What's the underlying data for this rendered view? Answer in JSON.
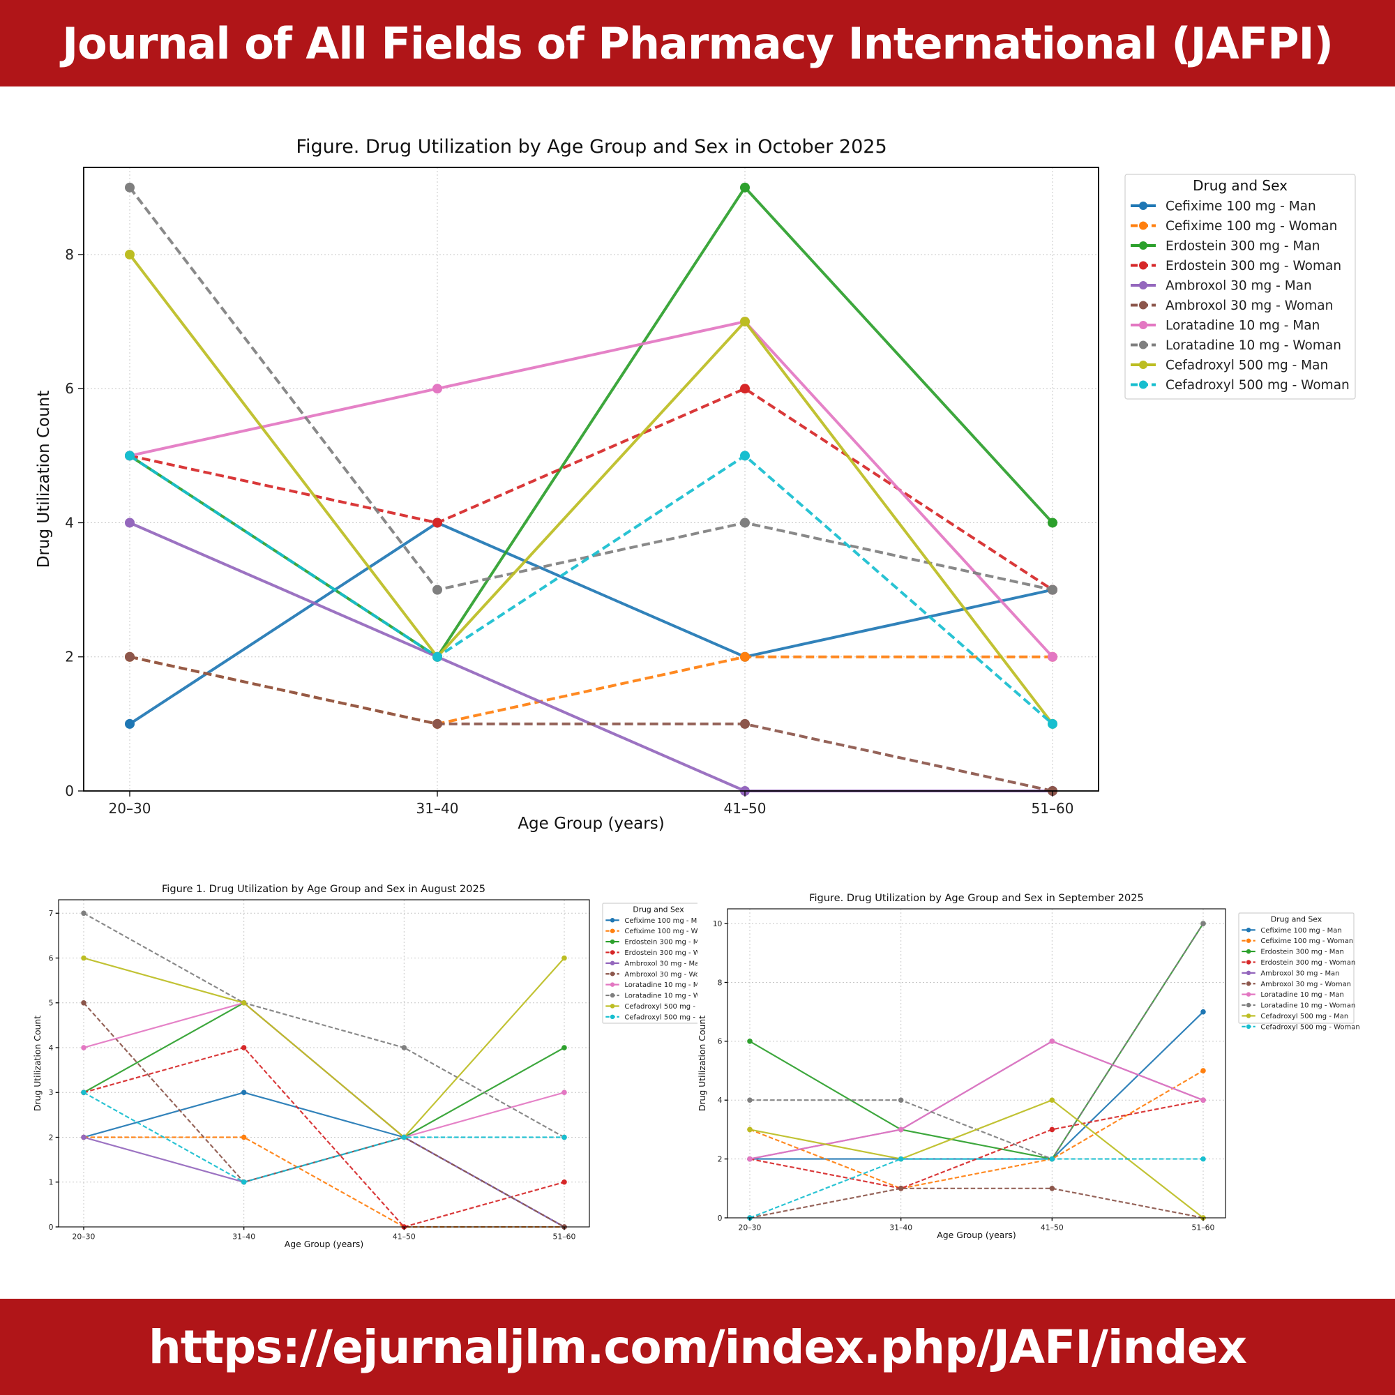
{
  "header": {
    "title": "Journal of All Fields of Pharmacy International (JAFPI)"
  },
  "footer": {
    "url": "https://ejurnaljlm.com/index.php/JAFI/index"
  },
  "colors": {
    "banner": "#b01518",
    "banner_text": "#ffffff"
  },
  "series_styles": [
    {
      "name": "Cefixime 100 mg - Man",
      "color": "#1f77b4",
      "dashed": false
    },
    {
      "name": "Cefixime 100 mg - Woman",
      "color": "#ff7f0e",
      "dashed": true
    },
    {
      "name": "Erdostein 300 mg - Man",
      "color": "#2ca02c",
      "dashed": false
    },
    {
      "name": "Erdostein 300 mg - Woman",
      "color": "#d62728",
      "dashed": true
    },
    {
      "name": "Ambroxol 30 mg - Man",
      "color": "#9467bd",
      "dashed": false
    },
    {
      "name": "Ambroxol 30 mg - Woman",
      "color": "#8c564b",
      "dashed": true
    },
    {
      "name": "Loratadine 10 mg - Man",
      "color": "#e377c2",
      "dashed": false
    },
    {
      "name": "Loratadine 10 mg - Woman",
      "color": "#7f7f7f",
      "dashed": true
    },
    {
      "name": "Cefadroxyl 500 mg - Man",
      "color": "#bcbd22",
      "dashed": false
    },
    {
      "name": "Cefadroxyl 500 mg - Woman",
      "color": "#17becf",
      "dashed": true
    }
  ],
  "chart_data": [
    {
      "id": "october",
      "type": "line",
      "title": "Figure. Drug Utilization by Age Group and Sex in October 2025",
      "xlabel": "Age Group (years)",
      "ylabel": "Drug Utilization Count",
      "categories": [
        "20–30",
        "31–40",
        "41–50",
        "51–60"
      ],
      "ylim": [
        0,
        9.3
      ],
      "yticks": [
        0,
        2,
        4,
        6,
        8
      ],
      "grid": true,
      "legend_title": "Drug and Sex",
      "legend_placement": "outside-right",
      "series": [
        {
          "name": "Cefixime 100 mg - Man",
          "values": [
            1,
            4,
            2,
            3
          ]
        },
        {
          "name": "Cefixime 100 mg - Woman",
          "values": [
            2,
            1,
            2,
            2
          ]
        },
        {
          "name": "Erdostein 300 mg - Man",
          "values": [
            5,
            2,
            9,
            4
          ]
        },
        {
          "name": "Erdostein 300 mg - Woman",
          "values": [
            5,
            4,
            6,
            3
          ]
        },
        {
          "name": "Ambroxol 30 mg - Man",
          "values": [
            4,
            2,
            0,
            0
          ]
        },
        {
          "name": "Ambroxol 30 mg - Woman",
          "values": [
            2,
            1,
            1,
            0
          ]
        },
        {
          "name": "Loratadine 10 mg - Man",
          "values": [
            5,
            6,
            7,
            2
          ]
        },
        {
          "name": "Loratadine 10 mg - Woman",
          "values": [
            9,
            3,
            4,
            3
          ]
        },
        {
          "name": "Cefadroxyl 500 mg - Man",
          "values": [
            8,
            2,
            7,
            1
          ]
        },
        {
          "name": "Cefadroxyl 500 mg - Woman",
          "values": [
            5,
            2,
            5,
            1
          ]
        }
      ]
    },
    {
      "id": "august",
      "type": "line",
      "title": "Figure 1. Drug Utilization by Age Group and Sex in August 2025",
      "xlabel": "Age Group (years)",
      "ylabel": "Drug Utilization Count",
      "categories": [
        "20–30",
        "31–40",
        "41–50",
        "51–60"
      ],
      "ylim": [
        0,
        7.3
      ],
      "yticks": [
        0,
        1,
        2,
        3,
        4,
        5,
        6,
        7
      ],
      "grid": true,
      "legend_title": "Drug and Sex",
      "legend_placement": "outside-right (cropped)",
      "legend_labels": [
        "Cefixime 100 mg - Ma",
        "Cefixime 100 mg - Wo",
        "Erdostein 300 mg - M",
        "Erdostein 300 mg - W",
        "Ambroxol 30 mg - Ma",
        "Ambroxol 30 mg - Wo",
        "Loratadine 10 mg - M",
        "Loratadine 10 mg - W",
        "Cefadroxyl 500 mg - I",
        "Cefadroxyl 500 mg - \\"
      ],
      "series": [
        {
          "name": "Cefixime 100 mg - Man",
          "values": [
            2,
            3,
            2,
            0
          ]
        },
        {
          "name": "Cefixime 100 mg - Woman",
          "values": [
            2,
            2,
            0,
            0
          ]
        },
        {
          "name": "Erdostein 300 mg - Man",
          "values": [
            3,
            5,
            2,
            4
          ]
        },
        {
          "name": "Erdostein 300 mg - Woman",
          "values": [
            3,
            4,
            0,
            1
          ]
        },
        {
          "name": "Ambroxol 30 mg - Man",
          "values": [
            2,
            1,
            2,
            0
          ]
        },
        {
          "name": "Ambroxol 30 mg - Woman",
          "values": [
            5,
            1,
            2,
            0
          ]
        },
        {
          "name": "Loratadine 10 mg - Man",
          "values": [
            4,
            5,
            2,
            3
          ]
        },
        {
          "name": "Loratadine 10 mg - Woman",
          "values": [
            7,
            5,
            4,
            2
          ]
        },
        {
          "name": "Cefadroxyl 500 mg - Man",
          "values": [
            6,
            5,
            2,
            6
          ]
        },
        {
          "name": "Cefadroxyl 500 mg - Woman",
          "values": [
            3,
            1,
            2,
            2
          ]
        }
      ]
    },
    {
      "id": "september",
      "type": "line",
      "title": "Figure. Drug Utilization by Age Group and Sex in September 2025",
      "xlabel": "Age Group (years)",
      "ylabel": "Drug Utilization Count",
      "categories": [
        "20–30",
        "31–40",
        "41–50",
        "51–60"
      ],
      "ylim": [
        0,
        10.5
      ],
      "yticks": [
        0,
        2,
        4,
        6,
        8,
        10
      ],
      "grid": true,
      "legend_title": "Drug and Sex",
      "legend_placement": "outside-right",
      "series": [
        {
          "name": "Cefixime 100 mg - Man",
          "values": [
            2,
            2,
            2,
            7
          ]
        },
        {
          "name": "Cefixime 100 mg - Woman",
          "values": [
            3,
            1,
            2,
            5
          ]
        },
        {
          "name": "Erdostein 300 mg - Man",
          "values": [
            6,
            3,
            2,
            10
          ]
        },
        {
          "name": "Erdostein 300 mg - Woman",
          "values": [
            2,
            1,
            3,
            4
          ]
        },
        {
          "name": "Ambroxol 30 mg - Man",
          "values": [
            2,
            3,
            6,
            4
          ]
        },
        {
          "name": "Ambroxol 30 mg - Woman",
          "values": [
            0,
            1,
            1,
            0
          ]
        },
        {
          "name": "Loratadine 10 mg - Man",
          "values": [
            2,
            3,
            6,
            4
          ]
        },
        {
          "name": "Loratadine 10 mg - Woman",
          "values": [
            4,
            4,
            2,
            10
          ]
        },
        {
          "name": "Cefadroxyl 500 mg - Man",
          "values": [
            3,
            2,
            4,
            0
          ]
        },
        {
          "name": "Cefadroxyl 500 mg - Woman",
          "values": [
            0,
            2,
            2,
            2
          ]
        }
      ]
    }
  ]
}
